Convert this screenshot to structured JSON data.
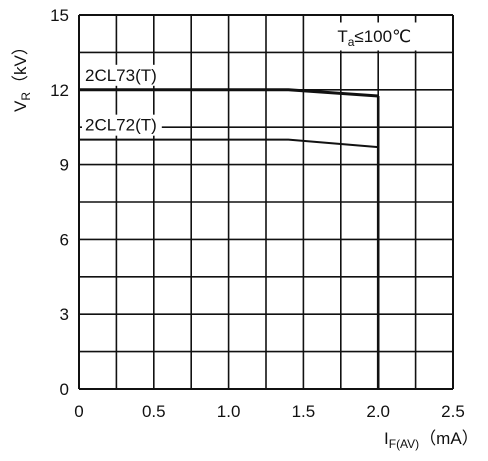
{
  "chart_data": {
    "type": "line",
    "title": "",
    "annotation": {
      "base": "T",
      "sub": "a",
      "rest": "≤100℃"
    },
    "xlabel": {
      "base": "I",
      "sub": "F(AV)",
      "rest": "（mA）"
    },
    "ylabel": {
      "base": "V",
      "sub": "R",
      "rest": "（kV）"
    },
    "xlim": [
      0,
      2.5
    ],
    "ylim": [
      0,
      15
    ],
    "x_ticks": [
      "0",
      "0.5",
      "1.0",
      "1.5",
      "2.0",
      "2.5"
    ],
    "y_ticks": [
      "0",
      "3",
      "6",
      "9",
      "12",
      "15"
    ],
    "grid": true,
    "cutoff_x": 2.0,
    "series": [
      {
        "name": "2CL73(T)",
        "x": [
          0,
          1.4,
          2.0
        ],
        "y": [
          12.0,
          12.0,
          11.75
        ]
      },
      {
        "name": "2CL72(T)",
        "x": [
          0,
          1.4,
          2.0
        ],
        "y": [
          10.0,
          10.0,
          9.7
        ]
      }
    ],
    "colors": {
      "line": "#111111",
      "grid": "#111111"
    }
  }
}
